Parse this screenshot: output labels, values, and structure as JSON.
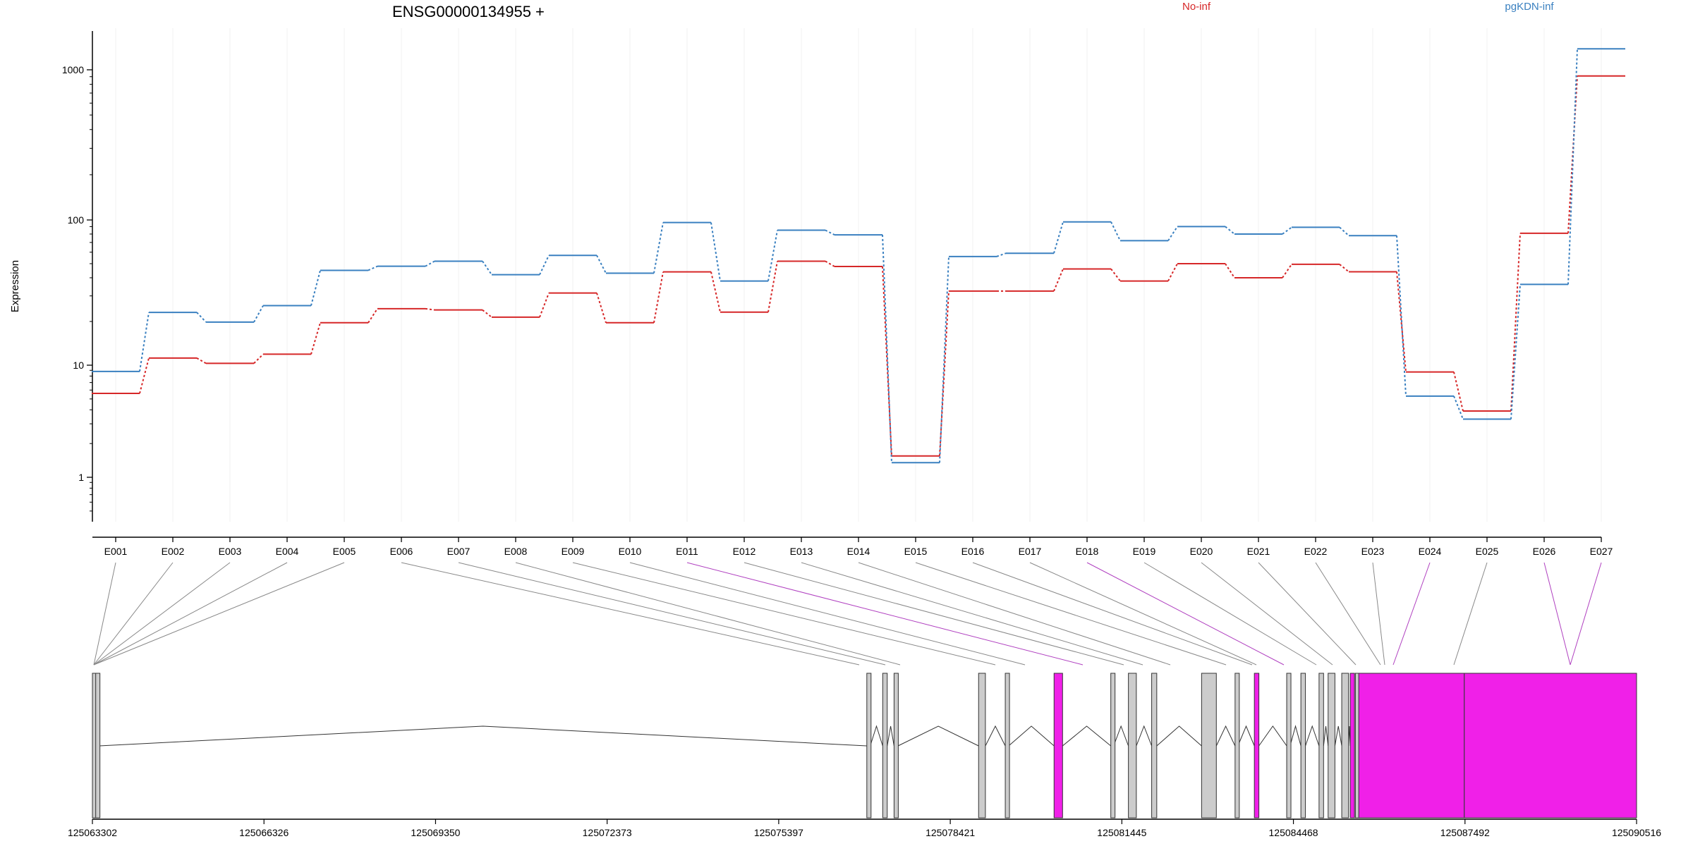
{
  "chart_data": {
    "type": "line",
    "title": "ENSG00000134955 +",
    "ylabel": "Expression",
    "yscale": "log",
    "y_ticks": [
      1,
      10,
      100,
      1000
    ],
    "y_tick_labels": [
      "1",
      "10",
      "100",
      "1000"
    ],
    "categories": [
      "E001",
      "E002",
      "E003",
      "E004",
      "E005",
      "E006",
      "E007",
      "E008",
      "E009",
      "E010",
      "E011",
      "E012",
      "E013",
      "E014",
      "E015",
      "E016",
      "E017",
      "E018",
      "E019",
      "E020",
      "E021",
      "E022",
      "E023",
      "E024",
      "E025",
      "E026",
      "E027"
    ],
    "series": [
      {
        "name": "No-inf",
        "color": "#d62728",
        "values": [
          5.6,
          11.2,
          10.3,
          11.9,
          19.6,
          24.5,
          24.0,
          21.4,
          31.4,
          19.6,
          43.9,
          23.2,
          52.0,
          47.8,
          1.55,
          32.4,
          32.4,
          46.0,
          38.0,
          50.0,
          40.0,
          49.5,
          44.0,
          8.7,
          3.9,
          81.0,
          910.0
        ]
      },
      {
        "name": "pgKDN-inf",
        "color": "#3a80c0",
        "values": [
          8.8,
          23.1,
          19.8,
          25.7,
          45.0,
          48.0,
          52.0,
          42.0,
          57.0,
          43.0,
          96.0,
          38.0,
          85.0,
          79.0,
          1.35,
          56.0,
          59.0,
          97.0,
          72.0,
          90.0,
          80.0,
          89.0,
          78.0,
          5.3,
          3.3,
          36.0,
          1380.0
        ]
      }
    ],
    "genomic_axis": {
      "tick_labels": [
        "125063302",
        "125066326",
        "125069350",
        "125072373",
        "125075397",
        "125078421",
        "125081445",
        "125084468",
        "125087492",
        "125090516"
      ]
    },
    "highlight_color": "#f020e8",
    "exon_color": "#cccccc",
    "highlighted_exons": [
      "E011",
      "E018",
      "E024",
      "E026",
      "E027"
    ]
  }
}
